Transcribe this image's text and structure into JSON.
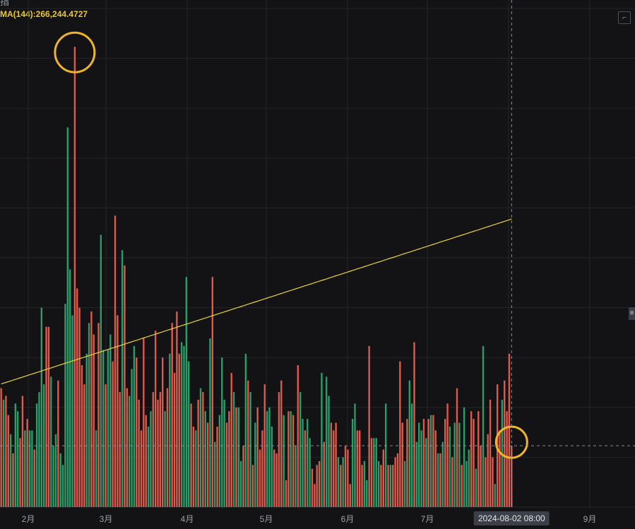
{
  "window": {
    "top_fragment": "指",
    "ma_label": "MA(144):266,244.4727",
    "cursor_date": "2024-08-02 08:00",
    "corner_icon": "collapse-icon",
    "handle_icon": "drag-handle-icon"
  },
  "colors": {
    "background": "#131316",
    "grid": "#23252b",
    "up": "#2a9d68",
    "down": "#e05a4c",
    "ma_line": "#e9d23a",
    "crosshair": "#8a8f98",
    "highlight_circle": "#f0b429"
  },
  "chart_data": {
    "type": "bar",
    "title": "",
    "xlabel": "",
    "ylabel": "",
    "x_ticks": [
      "2月",
      "3月",
      "4月",
      "5月",
      "6月",
      "7月",
      "9月"
    ],
    "series": [
      {
        "name": "",
        "kind": "bar",
        "colors": [
          "down",
          "up",
          "down",
          "down",
          "up",
          "down",
          "up",
          "up",
          "down",
          "down",
          "up",
          "down",
          "up",
          "up",
          "down",
          "up",
          "up",
          "up",
          "up",
          "down",
          "down",
          "up",
          "up",
          "up",
          "down",
          "up",
          "up",
          "up",
          "up",
          "up",
          "up",
          "down",
          "down",
          "down",
          "down",
          "down",
          "up",
          "up",
          "down",
          "down",
          "up",
          "down",
          "up",
          "up",
          "down",
          "up",
          "up",
          "down",
          "down",
          "down",
          "down",
          "up",
          "down",
          "down",
          "up",
          "up",
          "up",
          "down",
          "down",
          "down",
          "down",
          "down",
          "up",
          "up",
          "down",
          "down",
          "down",
          "down",
          "down",
          "up",
          "down",
          "up",
          "down",
          "down",
          "down",
          "down",
          "up",
          "up",
          "up",
          "up",
          "down",
          "down",
          "up",
          "down",
          "up",
          "down",
          "up",
          "down",
          "up",
          "down",
          "up",
          "down",
          "up",
          "up",
          "up",
          "down",
          "down",
          "down",
          "up",
          "down",
          "up",
          "up",
          "down",
          "up",
          "down",
          "up",
          "down",
          "up",
          "down",
          "down",
          "down",
          "down",
          "up",
          "up",
          "up",
          "down",
          "down",
          "down",
          "down",
          "up",
          "down",
          "down",
          "up",
          "down",
          "up",
          "down",
          "up",
          "up",
          "down",
          "up",
          "up",
          "down",
          "down",
          "down",
          "down",
          "up",
          "down",
          "up",
          "up",
          "down",
          "down",
          "down",
          "up",
          "down",
          "up",
          "down",
          "down",
          "down",
          "up",
          "up",
          "down",
          "down",
          "down",
          "up",
          "up",
          "down",
          "down",
          "up",
          "up",
          "up",
          "down",
          "down",
          "up",
          "down",
          "up",
          "down",
          "down",
          "down",
          "down",
          "down",
          "up",
          "down",
          "up",
          "up",
          "down",
          "up",
          "up",
          "up",
          "down",
          "up",
          "down",
          "up",
          "down",
          "down",
          "up",
          "down",
          "up",
          "down",
          "down",
          "up",
          "down",
          "up",
          "down",
          "up",
          "down",
          "up",
          "up",
          "up",
          "down",
          "down",
          "up",
          "down",
          "down",
          "up",
          "down",
          "down",
          "down",
          "down",
          "up",
          "down",
          "down",
          "up",
          "down"
        ],
        "values": [
          0.31,
          0.28,
          0.29,
          0.24,
          0.19,
          0.14,
          0.27,
          0.25,
          0.18,
          0.29,
          0.2,
          0.23,
          0.2,
          0.2,
          0.15,
          0.27,
          0.3,
          0.52,
          0.32,
          0.47,
          0.47,
          0.34,
          0.16,
          0.19,
          0.33,
          0.14,
          0.11,
          0.53,
          0.99,
          0.62,
          0.5,
          1.2,
          0.57,
          0.52,
          0.37,
          0.32,
          0.4,
          0.48,
          0.51,
          0.45,
          0.2,
          0.48,
          0.71,
          0.41,
          0.32,
          0.41,
          0.45,
          0.38,
          0.76,
          0.5,
          0.3,
          0.67,
          0.63,
          0.31,
          0.29,
          0.36,
          0.42,
          0.39,
          0.28,
          0.2,
          0.44,
          0.24,
          0.21,
          0.25,
          0.3,
          0.46,
          0.28,
          0.3,
          0.39,
          0.25,
          0.31,
          0.4,
          0.48,
          0.35,
          0.51,
          0.4,
          0.43,
          0.42,
          0.6,
          0.38,
          0.27,
          0.21,
          0.2,
          0.28,
          0.31,
          0.3,
          0.25,
          0.22,
          0.44,
          0.6,
          0.17,
          0.21,
          0.24,
          0.39,
          0.28,
          0.22,
          0.25,
          0.35,
          0.3,
          0.26,
          0.26,
          0.12,
          0.16,
          0.4,
          0.33,
          0.3,
          0.11,
          0.22,
          0.26,
          0.15,
          0.2,
          0.32,
          0.25,
          0.26,
          0.21,
          0.15,
          0.14,
          0.3,
          0.33,
          0.24,
          0.07,
          0.25,
          0.25,
          0.24,
          0.16,
          0.37,
          0.3,
          0.23,
          0.2,
          0.23,
          0.18,
          0.1,
          0.06,
          0.11,
          0.12,
          0.35,
          0.17,
          0.34,
          0.29,
          0.22,
          0.2,
          0.22,
          0.13,
          0.11,
          0.13,
          0.16,
          0.15,
          0.06,
          0.23,
          0.27,
          0.2,
          0.2,
          0.11,
          0.12,
          0.07,
          0.42,
          0.18,
          0.18,
          0.18,
          0.12,
          0.11,
          0.15,
          0.27,
          0.11,
          0.11,
          0.11,
          0.13,
          0.14,
          0.38,
          0.22,
          0.12,
          0.23,
          0.33,
          0.27,
          0.43,
          0.17,
          0.22,
          0.2,
          0.23,
          0.18,
          0.23,
          0.24,
          0.24,
          0.2,
          0.14,
          0.14,
          0.17,
          0.23,
          0.27,
          0.21,
          0.13,
          0.22,
          0.31,
          0.22,
          0.11,
          0.26,
          0.12,
          0.15,
          0.25,
          0.23,
          0.1,
          0.25,
          0.16,
          0.42,
          0.13,
          0.19,
          0.28,
          0.13,
          0.06,
          0.32,
          0.2,
          0.28,
          0.33,
          0.25,
          0.4,
          0.16
        ]
      },
      {
        "name": "MA(144)",
        "kind": "line",
        "values": [
          0.321,
          0.323,
          0.325,
          0.327,
          0.329,
          0.331,
          0.333,
          0.335,
          0.337,
          0.339,
          0.341,
          0.343,
          0.345,
          0.347,
          0.349,
          0.351,
          0.353,
          0.355,
          0.357,
          0.359,
          0.361,
          0.363,
          0.365,
          0.367,
          0.369,
          0.371,
          0.373,
          0.375,
          0.377,
          0.379,
          0.381,
          0.383,
          0.385,
          0.387,
          0.389,
          0.391,
          0.393,
          0.395,
          0.397,
          0.399,
          0.401,
          0.403,
          0.405,
          0.407,
          0.409,
          0.411,
          0.413,
          0.415,
          0.417,
          0.419,
          0.421,
          0.423,
          0.425,
          0.427,
          0.429,
          0.431,
          0.433,
          0.435,
          0.437,
          0.439,
          0.441,
          0.443,
          0.445,
          0.447,
          0.449,
          0.451,
          0.453,
          0.455,
          0.457,
          0.459,
          0.461,
          0.463,
          0.465,
          0.467,
          0.469,
          0.471,
          0.473,
          0.475,
          0.477,
          0.479,
          0.481,
          0.483,
          0.485,
          0.487,
          0.489,
          0.491,
          0.493,
          0.495,
          0.497,
          0.499,
          0.501,
          0.503,
          0.505,
          0.507,
          0.509,
          0.511,
          0.513,
          0.515,
          0.517,
          0.519,
          0.521,
          0.523,
          0.525,
          0.527,
          0.529,
          0.531,
          0.533,
          0.535,
          0.537,
          0.539,
          0.541,
          0.543,
          0.545,
          0.547,
          0.549,
          0.551,
          0.553,
          0.555,
          0.557,
          0.559,
          0.561,
          0.563,
          0.565,
          0.567,
          0.569,
          0.571,
          0.573,
          0.575,
          0.577,
          0.579,
          0.581,
          0.583,
          0.585,
          0.587,
          0.589,
          0.591,
          0.593,
          0.595,
          0.597,
          0.599,
          0.601,
          0.603,
          0.605,
          0.607,
          0.609,
          0.611,
          0.613,
          0.615,
          0.617,
          0.619,
          0.621,
          0.623,
          0.625,
          0.627,
          0.629,
          0.631,
          0.633,
          0.635,
          0.637,
          0.639,
          0.641,
          0.643,
          0.645,
          0.647,
          0.649,
          0.651,
          0.653,
          0.655,
          0.657,
          0.659,
          0.661,
          0.663,
          0.665,
          0.667,
          0.669,
          0.671,
          0.673,
          0.675,
          0.677,
          0.679,
          0.681,
          0.683,
          0.685,
          0.687,
          0.689,
          0.691,
          0.693,
          0.695,
          0.697,
          0.699,
          0.701,
          0.703,
          0.705,
          0.707,
          0.709,
          0.711,
          0.713,
          0.715,
          0.717,
          0.719,
          0.721,
          0.723,
          0.725,
          0.727,
          0.729,
          0.731,
          0.733,
          0.735,
          0.737,
          0.739,
          0.741,
          0.743,
          0.745,
          0.747,
          0.749,
          0.751
        ]
      }
    ],
    "ylim": [
      0,
      1.3
    ],
    "grid": true,
    "legend": "top-left",
    "annotations": [
      "highlight-circle-peak",
      "highlight-circle-cursor"
    ],
    "crosshair": {
      "x_label": "2024-08-02 08:00"
    }
  }
}
